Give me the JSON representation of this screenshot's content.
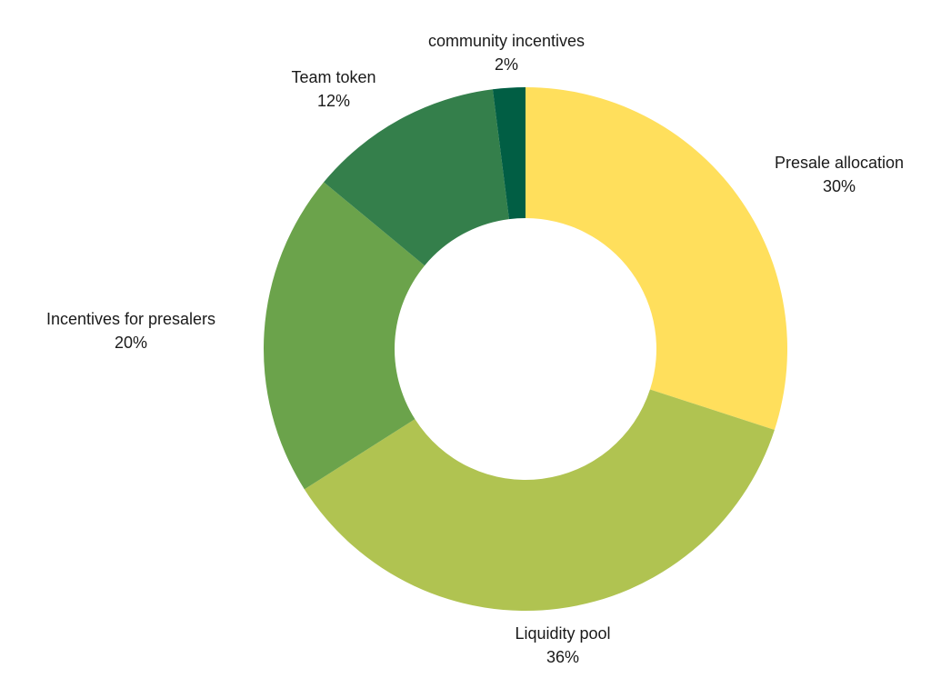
{
  "chart_data": {
    "type": "pie",
    "variant": "donut",
    "legend": "none",
    "slices": [
      {
        "label": "Presale allocation",
        "value": 30,
        "value_text": "30%",
        "color": "#FFDF5C"
      },
      {
        "label": "Liquidity pool",
        "value": 36,
        "value_text": "36%",
        "color": "#B0C351"
      },
      {
        "label": "Incentives for presalers",
        "value": 20,
        "value_text": "20%",
        "color": "#6BA34B"
      },
      {
        "label": "Team token",
        "value": 12,
        "value_text": "12%",
        "color": "#347F4B"
      },
      {
        "label": "community incentives",
        "value": 2,
        "value_text": "2%",
        "color": "#015E44"
      }
    ]
  }
}
